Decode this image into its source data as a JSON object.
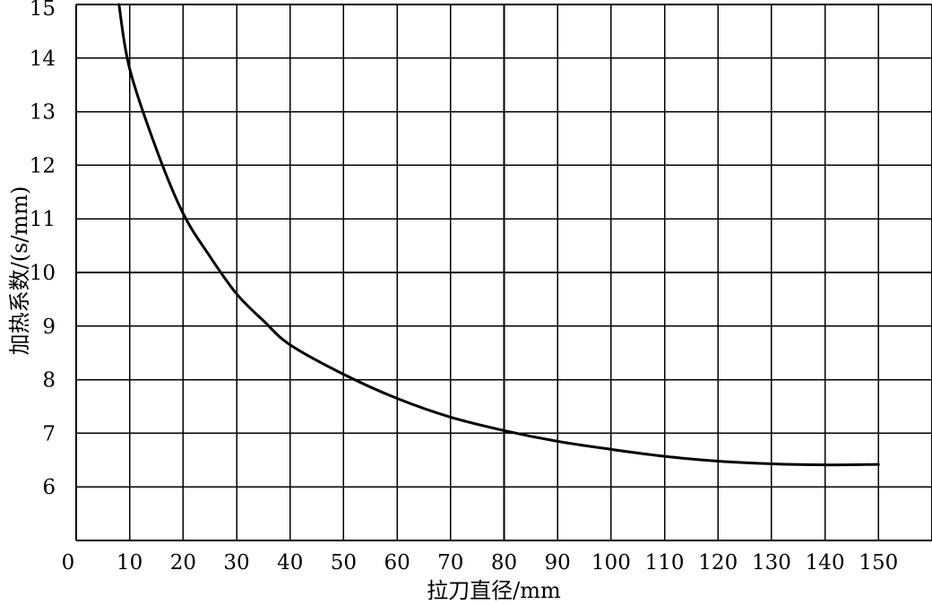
{
  "chart_data": {
    "type": "line",
    "title": "",
    "xlabel": "拉刀直径/mm",
    "ylabel": "加热系数/(s/mm)",
    "xlim": [
      0,
      160
    ],
    "ylim": [
      5,
      15
    ],
    "x_ticks": [
      0,
      10,
      20,
      30,
      40,
      50,
      60,
      70,
      80,
      90,
      100,
      110,
      120,
      130,
      140,
      150
    ],
    "y_ticks": [
      6,
      7,
      8,
      9,
      10,
      11,
      12,
      13,
      14,
      15
    ],
    "grid": true,
    "series": [
      {
        "x": [
          8,
          10,
          15,
          20,
          25,
          30,
          35,
          40,
          50,
          60,
          70,
          80,
          90,
          100,
          110,
          120,
          130,
          140,
          150
        ],
        "y": [
          15.0,
          13.8,
          12.3,
          11.1,
          10.3,
          9.6,
          9.1,
          8.65,
          8.1,
          7.65,
          7.3,
          7.05,
          6.85,
          6.7,
          6.57,
          6.48,
          6.43,
          6.41,
          6.42
        ]
      }
    ]
  }
}
